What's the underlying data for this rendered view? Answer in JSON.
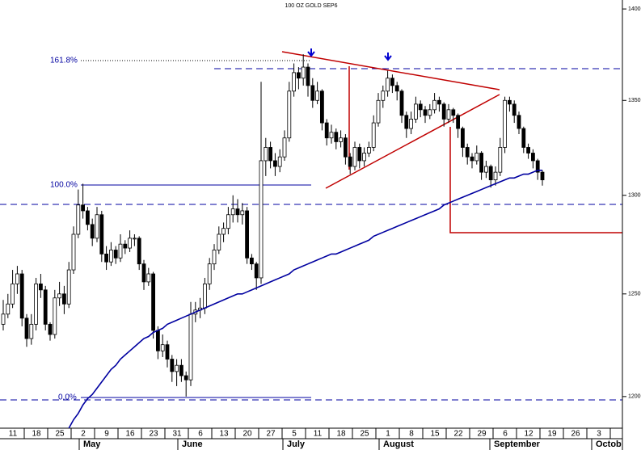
{
  "chart_data": {
    "type": "candlestick",
    "title": "100 OZ GOLD SEP6",
    "log_scale": true,
    "ylim": [
      1185,
      1405
    ],
    "yticks": [
      1200,
      1250,
      1300,
      1350,
      1400
    ],
    "up_color": "#ffffff",
    "down_color": "#000000",
    "week_labels": [
      "11",
      "18",
      "25",
      "2",
      "9",
      "16",
      "23",
      "31",
      "6",
      "13",
      "20",
      "27",
      "5",
      "11",
      "18",
      "25",
      "1",
      "8",
      "15",
      "22",
      "29",
      "6",
      "12",
      "19",
      "26",
      "3"
    ],
    "month_labels": [
      "May",
      "June",
      "July",
      "August",
      "September",
      "Octob"
    ],
    "fib_labels": [
      "161.8%",
      "100.0%",
      "0.0%"
    ],
    "ohlc": [
      [
        1235,
        1247,
        1232,
        1240
      ],
      [
        1240,
        1250,
        1238,
        1245
      ],
      [
        1245,
        1262,
        1243,
        1255
      ],
      [
        1255,
        1264,
        1250,
        1260
      ],
      [
        1260,
        1262,
        1234,
        1238
      ],
      [
        1238,
        1240,
        1224,
        1228
      ],
      [
        1228,
        1240,
        1225,
        1235
      ],
      [
        1235,
        1258,
        1232,
        1255
      ],
      [
        1255,
        1260,
        1248,
        1252
      ],
      [
        1252,
        1254,
        1232,
        1235
      ],
      [
        1235,
        1236,
        1227,
        1230
      ],
      [
        1230,
        1252,
        1228,
        1248
      ],
      [
        1248,
        1256,
        1244,
        1250
      ],
      [
        1250,
        1254,
        1240,
        1245
      ],
      [
        1245,
        1266,
        1243,
        1262
      ],
      [
        1262,
        1284,
        1260,
        1280
      ],
      [
        1280,
        1303,
        1278,
        1295
      ],
      [
        1295,
        1306,
        1288,
        1292
      ],
      [
        1292,
        1294,
        1282,
        1285
      ],
      [
        1285,
        1288,
        1274,
        1278
      ],
      [
        1278,
        1294,
        1276,
        1290
      ],
      [
        1290,
        1292,
        1266,
        1270
      ],
      [
        1270,
        1274,
        1262,
        1266
      ],
      [
        1266,
        1276,
        1264,
        1272
      ],
      [
        1272,
        1274,
        1265,
        1268
      ],
      [
        1268,
        1280,
        1266,
        1275
      ],
      [
        1275,
        1277,
        1270,
        1273
      ],
      [
        1273,
        1282,
        1271,
        1278
      ],
      [
        1278,
        1280,
        1274,
        1278
      ],
      [
        1278,
        1279,
        1262,
        1265
      ],
      [
        1265,
        1267,
        1252,
        1256
      ],
      [
        1256,
        1263,
        1254,
        1260
      ],
      [
        1260,
        1261,
        1228,
        1232
      ],
      [
        1232,
        1234,
        1218,
        1222
      ],
      [
        1222,
        1230,
        1219,
        1225
      ],
      [
        1225,
        1227,
        1214,
        1218
      ],
      [
        1218,
        1220,
        1207,
        1212
      ],
      [
        1212,
        1218,
        1205,
        1215
      ],
      [
        1215,
        1218,
        1207,
        1210
      ],
      [
        1210,
        1212,
        1200,
        1208
      ],
      [
        1208,
        1246,
        1205,
        1240
      ],
      [
        1240,
        1246,
        1236,
        1242
      ],
      [
        1242,
        1248,
        1238,
        1243
      ],
      [
        1243,
        1258,
        1240,
        1255
      ],
      [
        1255,
        1268,
        1252,
        1265
      ],
      [
        1265,
        1275,
        1262,
        1272
      ],
      [
        1272,
        1284,
        1270,
        1280
      ],
      [
        1280,
        1286,
        1276,
        1283
      ],
      [
        1283,
        1294,
        1280,
        1290
      ],
      [
        1290,
        1300,
        1286,
        1293
      ],
      [
        1293,
        1298,
        1286,
        1290
      ],
      [
        1290,
        1296,
        1285,
        1292
      ],
      [
        1292,
        1294,
        1265,
        1268
      ],
      [
        1268,
        1270,
        1262,
        1265
      ],
      [
        1265,
        1266,
        1252,
        1258
      ],
      [
        1258,
        1360,
        1255,
        1318
      ],
      [
        1318,
        1330,
        1310,
        1325
      ],
      [
        1325,
        1328,
        1314,
        1318
      ],
      [
        1318,
        1322,
        1310,
        1315
      ],
      [
        1315,
        1324,
        1312,
        1320
      ],
      [
        1320,
        1334,
        1318,
        1330
      ],
      [
        1330,
        1360,
        1328,
        1355
      ],
      [
        1355,
        1370,
        1352,
        1365
      ],
      [
        1365,
        1368,
        1356,
        1362
      ],
      [
        1362,
        1375,
        1358,
        1368
      ],
      [
        1368,
        1370,
        1352,
        1358
      ],
      [
        1358,
        1362,
        1346,
        1350
      ],
      [
        1350,
        1360,
        1348,
        1355
      ],
      [
        1355,
        1356,
        1334,
        1338
      ],
      [
        1338,
        1340,
        1326,
        1330
      ],
      [
        1330,
        1337,
        1327,
        1333
      ],
      [
        1333,
        1335,
        1324,
        1328
      ],
      [
        1328,
        1334,
        1325,
        1330
      ],
      [
        1330,
        1332,
        1316,
        1320
      ],
      [
        1320,
        1322,
        1311,
        1315
      ],
      [
        1315,
        1328,
        1313,
        1325
      ],
      [
        1325,
        1327,
        1314,
        1318
      ],
      [
        1318,
        1325,
        1315,
        1322
      ],
      [
        1322,
        1328,
        1320,
        1325
      ],
      [
        1325,
        1342,
        1323,
        1338
      ],
      [
        1338,
        1354,
        1336,
        1350
      ],
      [
        1350,
        1358,
        1346,
        1355
      ],
      [
        1355,
        1366,
        1352,
        1362
      ],
      [
        1362,
        1364,
        1354,
        1358
      ],
      [
        1358,
        1360,
        1350,
        1355
      ],
      [
        1355,
        1356,
        1338,
        1342
      ],
      [
        1342,
        1344,
        1330,
        1335
      ],
      [
        1335,
        1344,
        1332,
        1340
      ],
      [
        1340,
        1352,
        1338,
        1348
      ],
      [
        1348,
        1350,
        1341,
        1345
      ],
      [
        1345,
        1347,
        1338,
        1342
      ],
      [
        1342,
        1348,
        1340,
        1345
      ],
      [
        1345,
        1354,
        1343,
        1350
      ],
      [
        1350,
        1352,
        1344,
        1348
      ],
      [
        1348,
        1349,
        1336,
        1340
      ],
      [
        1340,
        1348,
        1338,
        1345
      ],
      [
        1345,
        1346,
        1338,
        1342
      ],
      [
        1342,
        1343,
        1330,
        1335
      ],
      [
        1335,
        1336,
        1320,
        1325
      ],
      [
        1325,
        1327,
        1316,
        1320
      ],
      [
        1320,
        1322,
        1314,
        1318
      ],
      [
        1318,
        1326,
        1316,
        1322
      ],
      [
        1322,
        1323,
        1308,
        1312
      ],
      [
        1312,
        1318,
        1309,
        1315
      ],
      [
        1315,
        1316,
        1304,
        1308
      ],
      [
        1308,
        1315,
        1305,
        1312
      ],
      [
        1312,
        1330,
        1310,
        1325
      ],
      [
        1325,
        1352,
        1322,
        1350
      ],
      [
        1350,
        1352,
        1344,
        1348
      ],
      [
        1348,
        1350,
        1338,
        1342
      ],
      [
        1342,
        1344,
        1332,
        1335
      ],
      [
        1335,
        1336,
        1322,
        1325
      ],
      [
        1325,
        1327,
        1319,
        1322
      ],
      [
        1322,
        1324,
        1314,
        1318
      ],
      [
        1318,
        1319,
        1308,
        1312
      ],
      [
        1312,
        1313,
        1305,
        1308
      ]
    ],
    "moving_average": {
      "color": "#0000a0",
      "values": [
        null,
        null,
        null,
        null,
        null,
        null,
        null,
        null,
        null,
        null,
        null,
        null,
        1177,
        1181,
        1185,
        1189,
        1192,
        1196,
        1199,
        1201,
        1204,
        1207,
        1210,
        1213,
        1215,
        1218,
        1220,
        1222,
        1224,
        1226,
        1228,
        1229,
        1231,
        1232,
        1233,
        1235,
        1236,
        1237,
        1238,
        1239,
        1240,
        1241,
        1242,
        1243,
        1244,
        1245,
        1246,
        1247,
        1248,
        1249,
        1250,
        1250,
        1251,
        1252,
        1253,
        1254,
        1255,
        1256,
        1257,
        1258,
        1259,
        1260,
        1262,
        1263,
        1264,
        1265,
        1266,
        1267,
        1268,
        1269,
        1270,
        1270,
        1271,
        1272,
        1273,
        1274,
        1275,
        1276,
        1277,
        1279,
        1280,
        1281,
        1282,
        1283,
        1284,
        1285,
        1286,
        1287,
        1288,
        1289,
        1290,
        1291,
        1292,
        1293,
        1295,
        1296,
        1297,
        1298,
        1299,
        1300,
        1301,
        1302,
        1303,
        1304,
        1305,
        1306,
        1307,
        1308,
        1309,
        1309,
        1310,
        1311,
        1311,
        1312,
        1313,
        1313
      ]
    }
  }
}
